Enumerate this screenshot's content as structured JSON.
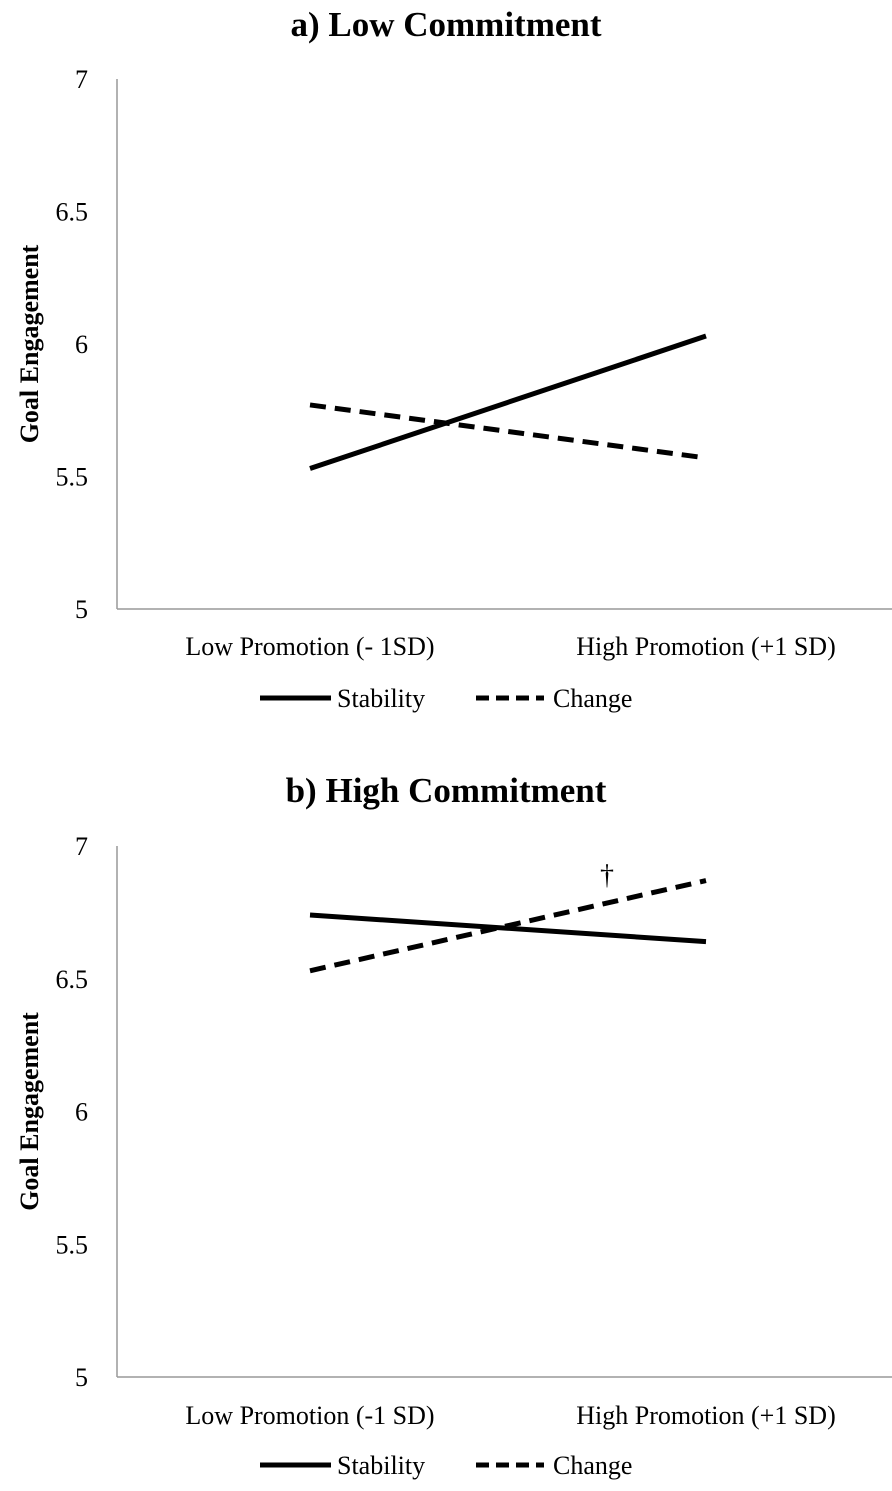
{
  "chart_data": [
    {
      "type": "line",
      "title": "a) Low Commitment",
      "ylabel": "Goal Engagement",
      "xlabel": "",
      "categories": [
        "Low Promotion (- 1SD)",
        "High Promotion (+1 SD)"
      ],
      "ylim": [
        5,
        7
      ],
      "yticks": [
        "5",
        "5.5",
        "6",
        "6.5",
        "7"
      ],
      "grid": false,
      "legend_position": "bottom",
      "series": [
        {
          "name": "Stability",
          "values": [
            5.53,
            6.03
          ],
          "style": "solid",
          "color": "#000000"
        },
        {
          "name": "Change",
          "values": [
            5.77,
            5.57
          ],
          "style": "dashed",
          "color": "#000000"
        }
      ],
      "annotations": []
    },
    {
      "type": "line",
      "title": "b) High Commitment",
      "ylabel": "Goal Engagement",
      "xlabel": "",
      "categories": [
        "Low Promotion (-1 SD)",
        "High Promotion (+1 SD)"
      ],
      "ylim": [
        5,
        7
      ],
      "yticks": [
        "5",
        "5.5",
        "6",
        "6.5",
        "7"
      ],
      "grid": false,
      "legend_position": "bottom",
      "series": [
        {
          "name": "Stability",
          "values": [
            6.74,
            6.64
          ],
          "style": "solid",
          "color": "#000000"
        },
        {
          "name": "Change",
          "values": [
            6.53,
            6.87
          ],
          "style": "dashed",
          "color": "#000000"
        }
      ],
      "annotations": [
        {
          "text": "†",
          "series": "Change",
          "x": 0.75,
          "y": 6.85
        }
      ]
    }
  ]
}
